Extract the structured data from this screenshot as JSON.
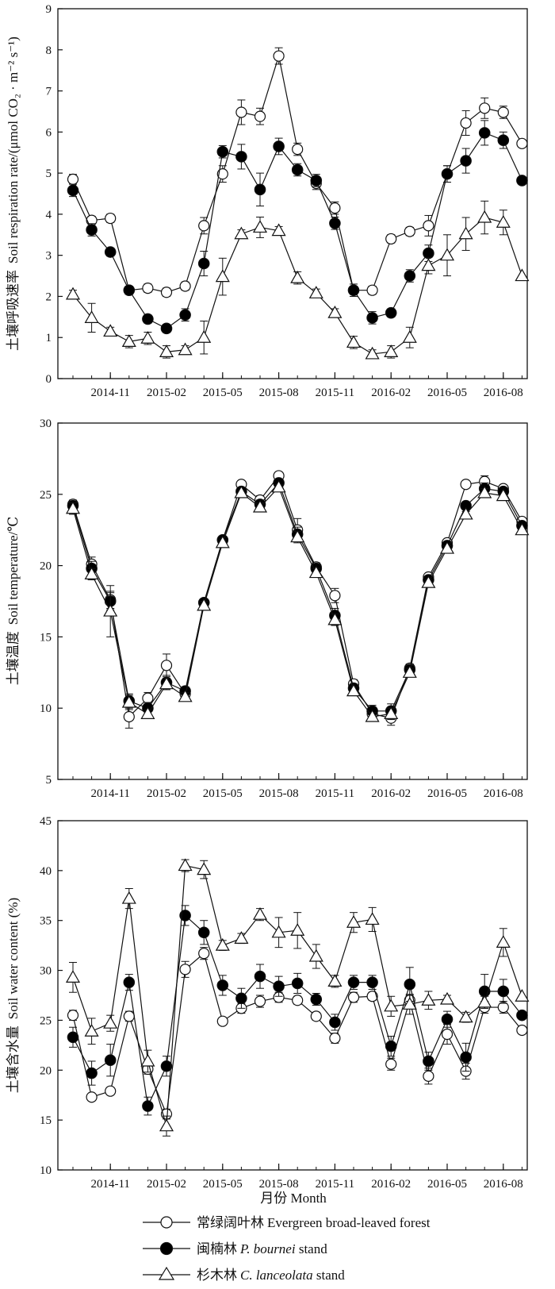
{
  "x_axis": {
    "label": "月份  Month",
    "tick_labels": [
      "2014-11",
      "2015-02",
      "2015-05",
      "2015-08",
      "2015-11",
      "2016-02",
      "2016-05",
      "2016-08"
    ]
  },
  "legend": {
    "placement": "bottom",
    "entries": [
      {
        "marker": "circle-open",
        "cn": "常绿阔叶林",
        "en": "Evergreen broad-leaved forest",
        "latin": ""
      },
      {
        "marker": "circle-filled",
        "cn": "闽楠林",
        "en": " stand",
        "latin": "P. bournei"
      },
      {
        "marker": "triangle-open",
        "cn": "杉木林",
        "en": " stand",
        "latin": "C. lanceolata"
      }
    ]
  },
  "chart_data": [
    {
      "type": "line",
      "ylabel_cn": "土壤呼吸速率",
      "ylabel_en": "Soil respiration rate/(μmol CO₂ · m⁻² s⁻¹)",
      "ylim": [
        0,
        9
      ],
      "yticks": [
        0,
        1,
        2,
        3,
        4,
        5,
        6,
        7,
        8,
        9
      ],
      "x": [
        "2014-09",
        "2014-10",
        "2014-11",
        "2014-12",
        "2015-01",
        "2015-02",
        "2015-03",
        "2015-04",
        "2015-05",
        "2015-06",
        "2015-07",
        "2015-08",
        "2015-09",
        "2015-10",
        "2015-11",
        "2015-12",
        "2016-01",
        "2016-02",
        "2016-03",
        "2016-04",
        "2016-05",
        "2016-06",
        "2016-07",
        "2016-08",
        "2016-09"
      ],
      "series": [
        {
          "name": "常绿阔叶林",
          "marker": "circle-open",
          "values": [
            4.85,
            3.85,
            3.9,
            2.15,
            2.2,
            2.1,
            2.25,
            3.72,
            4.98,
            6.48,
            6.38,
            7.85,
            5.58,
            4.75,
            4.15,
            2.15,
            2.15,
            3.4,
            3.58,
            3.72,
            4.98,
            6.22,
            6.58,
            6.48,
            5.72
          ],
          "errors": [
            0.12,
            0.1,
            0.1,
            0.1,
            0.1,
            0.1,
            0.1,
            0.2,
            0.2,
            0.3,
            0.2,
            0.2,
            0.15,
            0.15,
            0.15,
            0.1,
            0.1,
            0.1,
            0.1,
            0.25,
            0.2,
            0.3,
            0.25,
            0.15,
            0.0
          ]
        },
        {
          "name": "闽楠林",
          "marker": "circle-filled",
          "values": [
            4.58,
            3.62,
            3.08,
            2.15,
            1.45,
            1.22,
            1.55,
            2.8,
            5.52,
            5.4,
            4.6,
            5.65,
            5.08,
            4.82,
            3.78,
            2.15,
            1.48,
            1.6,
            2.5,
            3.05,
            4.98,
            5.3,
            5.98,
            5.8,
            4.82
          ],
          "errors": [
            0.15,
            0.15,
            0.1,
            0.1,
            0.1,
            0.1,
            0.15,
            0.3,
            0.15,
            0.3,
            0.4,
            0.2,
            0.15,
            0.15,
            0.15,
            0.15,
            0.15,
            0.1,
            0.15,
            0.2,
            0.2,
            0.3,
            0.3,
            0.2,
            0.0
          ]
        },
        {
          "name": "杉木林",
          "marker": "triangle-open",
          "values": [
            2.05,
            1.48,
            1.15,
            0.9,
            0.98,
            0.65,
            0.7,
            1.0,
            2.48,
            3.52,
            3.68,
            3.6,
            2.45,
            2.08,
            1.6,
            0.88,
            0.6,
            0.65,
            1.0,
            2.75,
            3.0,
            3.52,
            3.92,
            3.8,
            2.5
          ],
          "errors": [
            0.1,
            0.35,
            0.1,
            0.15,
            0.15,
            0.15,
            0.1,
            0.4,
            0.45,
            0.1,
            0.25,
            0.1,
            0.15,
            0.1,
            0.1,
            0.15,
            0.1,
            0.15,
            0.25,
            0.2,
            0.5,
            0.4,
            0.4,
            0.3,
            0.0
          ]
        }
      ]
    },
    {
      "type": "line",
      "ylabel_cn": "土壤温度",
      "ylabel_en": "Soil temperature/℃",
      "ylim": [
        5,
        30
      ],
      "yticks": [
        5,
        10,
        15,
        20,
        25,
        30
      ],
      "x": [
        "2014-09",
        "2014-10",
        "2014-11",
        "2014-12",
        "2015-01",
        "2015-02",
        "2015-03",
        "2015-04",
        "2015-05",
        "2015-06",
        "2015-07",
        "2015-08",
        "2015-09",
        "2015-10",
        "2015-11",
        "2015-12",
        "2016-01",
        "2016-02",
        "2016-03",
        "2016-04",
        "2016-05",
        "2016-06",
        "2016-07",
        "2016-08",
        "2016-09"
      ],
      "series": [
        {
          "name": "常绿阔叶林",
          "marker": "circle-open",
          "values": [
            24.3,
            20.1,
            17.6,
            9.4,
            10.7,
            13.0,
            11.0,
            17.4,
            21.8,
            25.7,
            24.6,
            26.3,
            22.5,
            19.9,
            17.9,
            11.7,
            9.6,
            9.3,
            12.8,
            19.2,
            21.6,
            25.7,
            25.9,
            25.4,
            23.1
          ],
          "errors": [
            0.3,
            0.5,
            0.6,
            0.8,
            0.4,
            0.8,
            0.3,
            0.2,
            0.2,
            0.2,
            0.3,
            0.2,
            0.8,
            0.3,
            0.5,
            0.3,
            0.4,
            0.5,
            0.3,
            0.2,
            0.2,
            0.2,
            0.4,
            0.2,
            0.0
          ]
        },
        {
          "name": "闽楠林",
          "marker": "circle-filled",
          "values": [
            24.2,
            19.8,
            17.5,
            10.5,
            10.0,
            11.8,
            11.2,
            17.4,
            21.8,
            25.2,
            24.3,
            25.8,
            22.2,
            19.8,
            16.5,
            11.4,
            9.8,
            9.8,
            12.7,
            19.0,
            21.4,
            24.2,
            25.4,
            25.2,
            22.8
          ],
          "errors": [
            0.3,
            0.5,
            0.6,
            0.5,
            0.4,
            0.5,
            0.3,
            0.2,
            0.2,
            0.2,
            0.3,
            0.2,
            0.5,
            0.3,
            0.5,
            0.3,
            0.4,
            0.5,
            0.3,
            0.2,
            0.2,
            0.2,
            0.4,
            0.2,
            0.0
          ]
        },
        {
          "name": "杉木林",
          "marker": "triangle-open",
          "values": [
            24.0,
            19.4,
            16.8,
            10.4,
            9.6,
            11.7,
            10.8,
            17.2,
            21.6,
            25.1,
            24.1,
            25.5,
            22.0,
            19.5,
            16.2,
            11.2,
            9.4,
            9.6,
            12.5,
            18.8,
            21.2,
            23.6,
            25.1,
            24.9,
            22.5
          ],
          "errors": [
            0.4,
            0.4,
            1.8,
            0.5,
            0.3,
            0.4,
            0.3,
            0.3,
            0.2,
            0.2,
            0.3,
            0.2,
            0.4,
            0.3,
            0.4,
            0.3,
            0.3,
            0.4,
            0.3,
            0.2,
            0.2,
            0.2,
            0.3,
            0.2,
            0.0
          ]
        }
      ]
    },
    {
      "type": "line",
      "ylabel_cn": "土壤含水量",
      "ylabel_en": "Soil water content (%)",
      "ylim": [
        10,
        45
      ],
      "yticks": [
        10,
        15,
        20,
        25,
        30,
        35,
        40,
        45
      ],
      "x": [
        "2014-09",
        "2014-10",
        "2014-11",
        "2014-12",
        "2015-01",
        "2015-02",
        "2015-03",
        "2015-04",
        "2015-05",
        "2015-06",
        "2015-07",
        "2015-08",
        "2015-09",
        "2015-10",
        "2015-11",
        "2015-12",
        "2016-01",
        "2016-02",
        "2016-03",
        "2016-04",
        "2016-05",
        "2016-06",
        "2016-07",
        "2016-08",
        "2016-09"
      ],
      "series": [
        {
          "name": "常绿阔叶林",
          "marker": "circle-open",
          "values": [
            25.5,
            17.3,
            17.9,
            25.4,
            20.1,
            15.6,
            30.1,
            31.7,
            24.9,
            26.2,
            26.9,
            27.3,
            27.0,
            25.4,
            23.2,
            27.3,
            27.4,
            20.6,
            27.0,
            19.4,
            23.6,
            19.9,
            26.3,
            26.3,
            24.0
          ],
          "errors": [
            0.5,
            0.3,
            0.3,
            0.5,
            0.5,
            0.5,
            0.8,
            0.6,
            0.3,
            0.5,
            0.6,
            0.5,
            0.4,
            0.4,
            0.5,
            0.5,
            0.4,
            0.6,
            0.5,
            0.8,
            1.0,
            0.8,
            0.6,
            0.6,
            0.0
          ]
        },
        {
          "name": "闽楠林",
          "marker": "circle-filled",
          "values": [
            23.3,
            19.7,
            21.0,
            28.8,
            16.4,
            20.4,
            35.5,
            33.8,
            28.5,
            27.2,
            29.4,
            28.4,
            28.7,
            27.1,
            24.8,
            28.8,
            28.8,
            22.4,
            28.6,
            20.9,
            25.1,
            21.3,
            27.9,
            27.9,
            25.5
          ],
          "errors": [
            1.0,
            1.2,
            1.6,
            0.8,
            0.9,
            1.0,
            1.0,
            1.2,
            1.0,
            1.0,
            1.2,
            1.0,
            1.0,
            0.6,
            0.8,
            0.7,
            0.7,
            1.0,
            1.7,
            0.9,
            0.8,
            1.4,
            1.7,
            1.2,
            0.0
          ]
        },
        {
          "name": "杉木林",
          "marker": "triangle-open",
          "values": [
            29.3,
            23.9,
            24.7,
            37.2,
            20.9,
            14.4,
            40.5,
            40.1,
            32.5,
            33.2,
            35.6,
            33.8,
            34.0,
            31.4,
            28.9,
            34.8,
            35.1,
            26.4,
            26.6,
            27.0,
            27.1,
            25.3,
            26.8,
            32.8,
            27.4
          ],
          "errors": [
            1.5,
            1.3,
            0.8,
            1.0,
            1.1,
            1.0,
            0.6,
            0.9,
            0.5,
            0.5,
            0.6,
            1.5,
            1.8,
            1.2,
            0.6,
            1.0,
            1.2,
            1.0,
            1.0,
            0.9,
            0.4,
            0.5,
            0.6,
            1.4,
            0.0
          ]
        }
      ]
    }
  ]
}
